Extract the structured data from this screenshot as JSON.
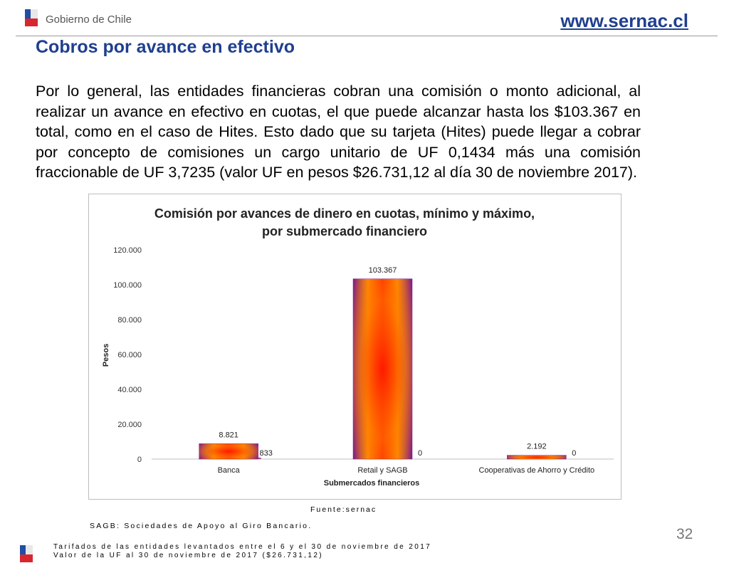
{
  "header": {
    "org_name": "Gobierno de Chile",
    "website": "www.sernac.cl"
  },
  "slide": {
    "title": "Cobros por avance en efectivo",
    "body": "Por lo general, las entidades financieras cobran una comisión o monto adicional, al realizar un avance en efectivo en cuotas, el que puede alcanzar hasta los $103.367 en total, como en el caso de Hites. Esto dado que su tarjeta (Hites) puede llegar a cobrar por concepto de comisiones un cargo unitario de UF 0,1434 más una comisión fraccionable de UF 3,7235 (valor UF en pesos $26.731,12 al día 30 de noviembre 2017).",
    "source": "Fuente:sernac",
    "sagb_note": "SAGB: Sociedades de Apoyo al Giro Bancario.",
    "page_number": "32",
    "footnote_1": "Tarifados de las entidades levantados entre el 6 y el 30 de noviembre de 2017",
    "footnote_2": "Valor de la UF al 30 de noviembre de 2017 ($26.731,12)"
  },
  "chart_data": {
    "type": "bar",
    "title_line1": "Comisión por avances de dinero en cuotas, mínimo y máximo,",
    "title_line2": "por submercado financiero",
    "xlabel": "Submercados financieros",
    "ylabel": "Pesos",
    "ylim": [
      0,
      120000
    ],
    "y_ticks": [
      0,
      20000,
      40000,
      60000,
      80000,
      100000,
      120000
    ],
    "y_tick_labels": [
      "0",
      "20.000",
      "40.000",
      "60.000",
      "80.000",
      "100.000",
      "120.000"
    ],
    "categories": [
      "Banca",
      "Retail y SAGB",
      "Cooperativas de Ahorro y Crédito"
    ],
    "series": [
      {
        "values": [
          8821,
          103367,
          2192
        ],
        "labels": [
          "8.821",
          "103.367",
          "2.192"
        ]
      },
      {
        "values": [
          833,
          0,
          0
        ],
        "labels": [
          "833",
          "0",
          "0"
        ]
      }
    ],
    "colors": {
      "bar_center": "#ff2200",
      "bar_mid": "#ff8c00",
      "bar_edge": "#7a1a8c"
    },
    "grid": false
  }
}
